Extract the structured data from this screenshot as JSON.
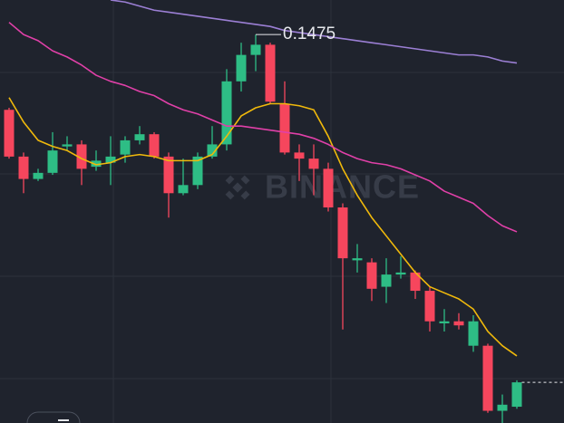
{
  "chart_data": {
    "type": "candlestick",
    "watermark": "BINANCE",
    "up_color": "#2ebd85",
    "down_color": "#f6465d",
    "ylim": [
      0.1284,
      0.1492
    ],
    "open": [
      0.1438,
      0.1415,
      0.1404,
      0.1407,
      0.142,
      0.1421,
      0.141,
      0.1412,
      0.1416,
      0.1423,
      0.1426,
      0.1415,
      0.1397,
      0.1401,
      0.1415,
      0.1421,
      0.1452,
      0.1465,
      0.147,
      0.1441,
      0.1417,
      0.1414,
      0.1409,
      0.139,
      0.1364,
      0.1363,
      0.1351,
      0.1357,
      0.1358,
      0.1349,
      0.1333,
      0.1334,
      0.1322,
      0.1322,
      0.129,
      0.1292
    ],
    "high": [
      0.1439,
      0.1417,
      0.1409,
      0.1427,
      0.1425,
      0.1423,
      0.1418,
      0.1425,
      0.1425,
      0.143,
      0.1427,
      0.1417,
      0.1414,
      0.1417,
      0.143,
      0.1458,
      0.1471,
      0.1475,
      0.1471,
      0.1452,
      0.1421,
      0.1421,
      0.1412,
      0.1392,
      0.1372,
      0.1365,
      0.1365,
      0.1366,
      0.1359,
      0.1351,
      0.134,
      0.1338,
      0.1337,
      0.1323,
      0.1298,
      0.1305
    ],
    "low": [
      0.1414,
      0.1397,
      0.1403,
      0.1406,
      0.1418,
      0.1401,
      0.1408,
      0.1401,
      0.1412,
      0.1421,
      0.1414,
      0.1385,
      0.1396,
      0.1399,
      0.1414,
      0.1418,
      0.1447,
      0.1457,
      0.1441,
      0.1416,
      0.1403,
      0.1396,
      0.1388,
      0.133,
      0.1358,
      0.1344,
      0.1343,
      0.1355,
      0.1345,
      0.1329,
      0.1329,
      0.133,
      0.1319,
      0.1289,
      0.1284,
      0.1291
    ],
    "close": [
      0.1415,
      0.1404,
      0.1407,
      0.1418,
      0.1421,
      0.1409,
      0.1413,
      0.1415,
      0.1423,
      0.1426,
      0.1415,
      0.1397,
      0.1401,
      0.1415,
      0.1421,
      0.1452,
      0.1465,
      0.147,
      0.1442,
      0.1417,
      0.1414,
      0.1409,
      0.139,
      0.1365,
      0.1365,
      0.135,
      0.1357,
      0.1358,
      0.1349,
      0.1334,
      0.1334,
      0.1332,
      0.1334,
      0.129,
      0.1293,
      0.1304
    ],
    "series": [
      {
        "color": "#f0b90b",
        "values": [
          0.1444,
          0.1432,
          0.1423,
          0.142,
          0.1418,
          0.1414,
          0.1411,
          0.1412,
          0.1415,
          0.1416,
          0.1415,
          0.1413,
          0.1413,
          0.1413,
          0.1416,
          0.1425,
          0.1435,
          0.1439,
          0.1441,
          0.1441,
          0.144,
          0.1438,
          0.1425,
          0.1409,
          0.1396,
          0.1385,
          0.1376,
          0.1367,
          0.1358,
          0.1351,
          0.1348,
          0.1345,
          0.134,
          0.1329,
          0.1322,
          0.1317
        ]
      },
      {
        "color": "#e040a8",
        "values": [
          0.1481,
          0.1475,
          0.1472,
          0.1467,
          0.1464,
          0.146,
          0.1455,
          0.1452,
          0.145,
          0.1447,
          0.1445,
          0.1441,
          0.1438,
          0.1436,
          0.1433,
          0.143,
          0.143,
          0.1429,
          0.1428,
          0.1427,
          0.1426,
          0.1424,
          0.1421,
          0.1417,
          0.1414,
          0.1412,
          0.1411,
          0.1409,
          0.1406,
          0.1403,
          0.1398,
          0.1395,
          0.1392,
          0.1386,
          0.1381,
          0.1378
        ]
      },
      {
        "color": "#9b7fd4",
        "values": [
          null,
          null,
          null,
          null,
          null,
          null,
          null,
          0.1492,
          0.1491,
          0.1489,
          0.1487,
          0.1486,
          0.1485,
          0.1484,
          0.1483,
          0.1482,
          0.1481,
          0.148,
          0.1479,
          0.1477,
          0.1476,
          0.1475,
          0.1474,
          0.1473,
          0.1472,
          0.1471,
          0.147,
          0.1469,
          0.1468,
          0.1467,
          0.1466,
          0.1465,
          0.1465,
          0.1464,
          0.1462,
          0.1461
        ]
      }
    ]
  }
}
